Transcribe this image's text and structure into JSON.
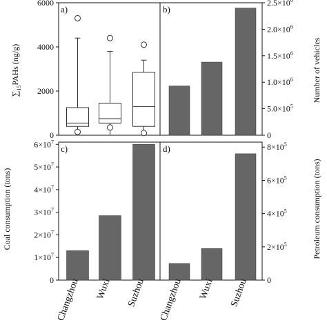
{
  "chart_data": [
    {
      "panel": "a)",
      "type": "box",
      "ylabel": "∑15PAHs (ng/g)",
      "ylabel_main": "∑",
      "ylabel_sub": "15",
      "ylabel_rest": "PAHs (ng/g)",
      "ylim": [
        0,
        6000
      ],
      "ticks": [
        0,
        2000,
        4000,
        6000
      ],
      "tick_labels": [
        "0",
        "2000",
        "4000",
        "6000"
      ],
      "categories": [
        "Changzhou",
        "Wuxi",
        "Suzhou"
      ],
      "boxes": [
        {
          "min": 0,
          "q1": 400,
          "median": 550,
          "q3": 1250,
          "max": 4400,
          "outliers": [
            5300,
            150
          ]
        },
        {
          "min": 0,
          "q1": 550,
          "median": 750,
          "q3": 1450,
          "max": 3800,
          "outliers": [
            4400,
            350
          ]
        },
        {
          "min": 0,
          "q1": 400,
          "median": 1300,
          "q3": 2850,
          "max": 3400,
          "outliers": [
            4100,
            100
          ]
        }
      ]
    },
    {
      "panel": "b)",
      "type": "bar",
      "ylabel": "Number of vehicles",
      "ylim": [
        0,
        2500000
      ],
      "ticks": [
        0,
        500000,
        1000000,
        1500000,
        2000000,
        2500000
      ],
      "tick_labels": [
        {
          "m": "0",
          "e": ""
        },
        {
          "m": "5.0×10",
          "e": "5"
        },
        {
          "m": "1.0×10",
          "e": "6"
        },
        {
          "m": "1.5×10",
          "e": "6"
        },
        {
          "m": "2.0×10",
          "e": "6"
        },
        {
          "m": "2.5×10",
          "e": "6"
        }
      ],
      "categories": [
        "Changzhou",
        "Wuxi",
        "Suzhou"
      ],
      "values": [
        930000,
        1380000,
        2400000
      ]
    },
    {
      "panel": "c)",
      "type": "bar",
      "ylabel": "Coal consumption (tons)",
      "ylim": [
        0,
        61000000
      ],
      "ticks": [
        0,
        10000000,
        20000000,
        30000000,
        40000000,
        50000000,
        60000000
      ],
      "tick_labels": [
        {
          "m": "0",
          "e": ""
        },
        {
          "m": "1×10",
          "e": "7"
        },
        {
          "m": "2×10",
          "e": "7"
        },
        {
          "m": "3×10",
          "e": "7"
        },
        {
          "m": "4×10",
          "e": "7"
        },
        {
          "m": "5×10",
          "e": "7"
        },
        {
          "m": "6×10",
          "e": "7"
        }
      ],
      "categories": [
        "Changzhou",
        "Wuxi",
        "Suzhou"
      ],
      "values": [
        13000000,
        28500000,
        60000000
      ]
    },
    {
      "panel": "d)",
      "type": "bar",
      "ylabel": "Petroleum consumption (tons)",
      "ylim": [
        0,
        830000
      ],
      "ticks": [
        0,
        200000,
        400000,
        600000,
        800000
      ],
      "tick_labels": [
        {
          "m": "0",
          "e": ""
        },
        {
          "m": "2×10",
          "e": "5"
        },
        {
          "m": "4×10",
          "e": "5"
        },
        {
          "m": "6×10",
          "e": "5"
        },
        {
          "m": "8×10",
          "e": "5"
        }
      ],
      "categories": [
        "Changzhou",
        "Wuxi",
        "Suzhou"
      ],
      "values": [
        100000,
        190000,
        760000
      ]
    }
  ]
}
